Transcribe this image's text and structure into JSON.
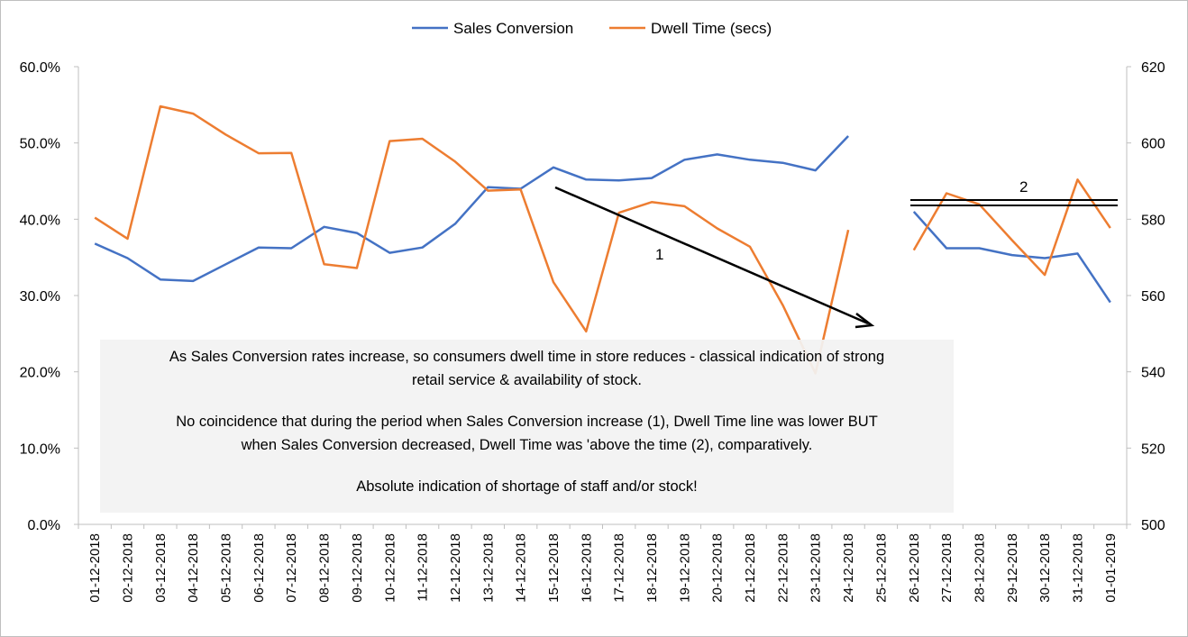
{
  "chart_data": {
    "type": "line",
    "categories": [
      "01-12-2018",
      "02-12-2018",
      "03-12-2018",
      "04-12-2018",
      "05-12-2018",
      "06-12-2018",
      "07-12-2018",
      "08-12-2018",
      "09-12-2018",
      "10-12-2018",
      "11-12-2018",
      "12-12-2018",
      "13-12-2018",
      "14-12-2018",
      "15-12-2018",
      "16-12-2018",
      "17-12-2018",
      "18-12-2018",
      "19-12-2018",
      "20-12-2018",
      "21-12-2018",
      "22-12-2018",
      "23-12-2018",
      "24-12-2018",
      "25-12-2018",
      "26-12-2018",
      "27-12-2018",
      "28-12-2018",
      "29-12-2018",
      "30-12-2018",
      "31-12-2018",
      "01-01-2019"
    ],
    "series": [
      {
        "name": "Sales Conversion",
        "axis": "left",
        "color": "#4472c4",
        "values": [
          0.368,
          0.349,
          0.321,
          0.319,
          0.341,
          0.363,
          0.362,
          0.39,
          0.382,
          0.356,
          0.363,
          0.394,
          0.442,
          0.44,
          0.468,
          0.452,
          0.451,
          0.454,
          0.478,
          0.485,
          0.478,
          0.474,
          0.464,
          0.509,
          null,
          0.41,
          0.362,
          0.362,
          0.353,
          0.349,
          0.355,
          0.291
        ]
      },
      {
        "name": "Dwell Time (secs)",
        "axis": "right",
        "color": "#ed7d31",
        "values": [
          580.4,
          574.9,
          609.6,
          607.7,
          602.2,
          597.3,
          597.4,
          568.2,
          567.2,
          600.5,
          601.1,
          595.1,
          587.5,
          587.8,
          563.5,
          550.6,
          581.7,
          584.5,
          583.4,
          577.6,
          572.8,
          557.5,
          539.6,
          577.2,
          null,
          571.9,
          586.8,
          583.9,
          574.5,
          565.4,
          590.4,
          577.7
        ]
      }
    ],
    "y_left": {
      "ticks": [
        "0.0%",
        "10.0%",
        "20.0%",
        "30.0%",
        "40.0%",
        "50.0%",
        "60.0%"
      ],
      "range": [
        0,
        0.6
      ]
    },
    "y_right": {
      "ticks": [
        "500",
        "520",
        "540",
        "560",
        "580",
        "600",
        "620"
      ],
      "range": [
        500,
        620
      ]
    },
    "legend_position": "top",
    "grid": false,
    "annotations": {
      "arrow_label": "1",
      "bracket_label": "2",
      "note_lines": [
        "As Sales Conversion rates increase, so consumers dwell time in store reduces - classical indication of strong",
        "retail service & availability of stock.",
        "No coincidence that during the period when Sales Conversion increase (1), Dwell Time line was lower BUT",
        "when Sales Conversion decreased, Dwell Time was 'above the time (2), comparatively.",
        "Absolute indication of shortage of staff and/or stock!"
      ]
    }
  }
}
